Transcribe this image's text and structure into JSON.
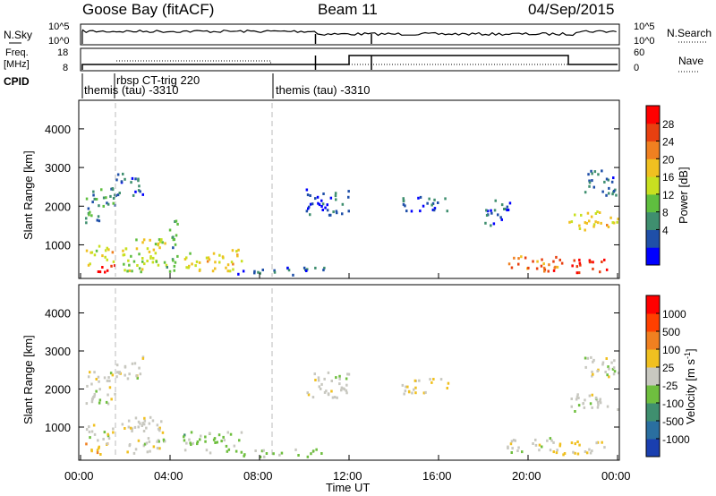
{
  "header": {
    "station": "Goose Bay (fitACF)",
    "beam": "Beam 11",
    "date": "04/Sep/2015"
  },
  "nsky_panel": {
    "left_label": "N.Sky",
    "left_ticks": [
      "10^5",
      "10^0"
    ],
    "right_ticks": [
      "10^5",
      "10^0"
    ],
    "right_label": "N.Search"
  },
  "freq_panel": {
    "left_label_1": "Freq.",
    "left_label_2": "[MHz]",
    "left_ticks": [
      "18",
      "8"
    ],
    "right_ticks": [
      "60",
      "0"
    ],
    "right_label": "Nave"
  },
  "cpid_panel": {
    "label": "CPID",
    "segments": [
      {
        "text": "themis (tau) -3310",
        "start_hour": 0.0
      },
      {
        "text": "rbsp CT-trig 220",
        "start_hour": 1.5
      },
      {
        "text": "themis (tau) -3310",
        "start_hour": 8.5
      }
    ]
  },
  "time_axis": {
    "ticks": [
      "00:00",
      "04:00",
      "08:00",
      "12:00",
      "16:00",
      "20:00",
      "00:00"
    ],
    "label": "Time UT"
  },
  "power_panel": {
    "ylabel": "Slant Range [km]",
    "yticks": [
      "1000",
      "2000",
      "3000",
      "4000"
    ],
    "colorbar_label": "Power [dB]",
    "colorbar_ticks": [
      "28",
      "24",
      "20",
      "16",
      "12",
      "8",
      "4"
    ],
    "colors": [
      "#0000ff",
      "#1f4fa8",
      "#3f8f6f",
      "#5fbf3f",
      "#c8e020",
      "#f0c020",
      "#f08020",
      "#e84010",
      "#ff0000"
    ]
  },
  "velocity_panel": {
    "ylabel": "Slant Range [km]",
    "yticks": [
      "1000",
      "2000",
      "3000",
      "4000"
    ],
    "colorbar_label": "Velocity [m s",
    "colorbar_label_sup": "-1",
    "colorbar_label_end": "]",
    "colorbar_ticks": [
      "1000",
      "500",
      "100",
      "25",
      "-25",
      "-100",
      "-500",
      "-1000"
    ],
    "colors": [
      "#1a3fb0",
      "#2a6fa0",
      "#3f8f6f",
      "#6fbf3f",
      "#c8c8c0",
      "#f0c020",
      "#f08020",
      "#ff4000",
      "#ff0000"
    ]
  },
  "chart_data": [
    {
      "type": "heatmap",
      "title": "Power",
      "xlabel": "Time UT",
      "ylabel": "Slant Range [km]",
      "xlim": [
        0,
        24
      ],
      "ylim": [
        200,
        4600
      ],
      "value_unit": "dB",
      "vlim": [
        0,
        32
      ],
      "clusters": [
        {
          "t0": 0.2,
          "t1": 1.5,
          "r0": 300,
          "r1": 500,
          "v": 30
        },
        {
          "t0": 0.2,
          "t1": 1.5,
          "r0": 500,
          "r1": 1000,
          "v": 18
        },
        {
          "t0": 0.2,
          "t1": 1.6,
          "r0": 1600,
          "r1": 2500,
          "v": 8
        },
        {
          "t0": 1.5,
          "t1": 2.8,
          "r0": 2300,
          "r1": 2900,
          "v": 5
        },
        {
          "t0": 1.8,
          "t1": 3.8,
          "r0": 300,
          "r1": 1300,
          "v": 16
        },
        {
          "t0": 3.8,
          "t1": 4.3,
          "r0": 300,
          "r1": 1800,
          "v": 10
        },
        {
          "t0": 4.5,
          "t1": 7.2,
          "r0": 350,
          "r1": 900,
          "v": 18
        },
        {
          "t0": 7.0,
          "t1": 11.0,
          "r0": 250,
          "r1": 450,
          "v": 6
        },
        {
          "t0": 10.0,
          "t1": 12.0,
          "r0": 1800,
          "r1": 2500,
          "v": 5
        },
        {
          "t0": 14.3,
          "t1": 16.5,
          "r0": 1900,
          "r1": 2300,
          "v": 5
        },
        {
          "t0": 18.0,
          "t1": 19.2,
          "r0": 1500,
          "r1": 2200,
          "v": 5
        },
        {
          "t0": 19.0,
          "t1": 21.3,
          "r0": 350,
          "r1": 750,
          "v": 24
        },
        {
          "t0": 21.0,
          "t1": 23.5,
          "r0": 300,
          "r1": 650,
          "v": 28
        },
        {
          "t0": 21.8,
          "t1": 24.0,
          "r0": 1400,
          "r1": 1900,
          "v": 18
        },
        {
          "t0": 22.5,
          "t1": 24.0,
          "r0": 2300,
          "r1": 3000,
          "v": 6
        }
      ]
    },
    {
      "type": "heatmap",
      "title": "Velocity",
      "xlabel": "Time UT",
      "ylabel": "Slant Range [km]",
      "xlim": [
        0,
        24
      ],
      "ylim": [
        200,
        4600
      ],
      "value_unit": "m s^-1",
      "vlim": [
        -1000,
        1000
      ],
      "clusters": [
        {
          "t0": 0.2,
          "t1": 1.5,
          "r0": 300,
          "r1": 600,
          "v": 300
        },
        {
          "t0": 0.2,
          "t1": 1.5,
          "r0": 600,
          "r1": 1100,
          "v": 0
        },
        {
          "t0": 0.2,
          "t1": 1.6,
          "r0": 1600,
          "r1": 2500,
          "v": 0
        },
        {
          "t0": 1.5,
          "t1": 2.8,
          "r0": 2300,
          "r1": 2900,
          "v": 0
        },
        {
          "t0": 1.8,
          "t1": 3.8,
          "r0": 300,
          "r1": 1300,
          "v": 0
        },
        {
          "t0": 4.5,
          "t1": 7.2,
          "r0": 350,
          "r1": 900,
          "v": -200
        },
        {
          "t0": 7.0,
          "t1": 11.0,
          "r0": 250,
          "r1": 450,
          "v": -150
        },
        {
          "t0": 10.0,
          "t1": 12.0,
          "r0": 1800,
          "r1": 2500,
          "v": 0
        },
        {
          "t0": 14.3,
          "t1": 16.5,
          "r0": 1900,
          "r1": 2300,
          "v": 80
        },
        {
          "t0": 19.0,
          "t1": 21.3,
          "r0": 350,
          "r1": 750,
          "v": 0
        },
        {
          "t0": 21.0,
          "t1": 23.5,
          "r0": 300,
          "r1": 650,
          "v": 150
        },
        {
          "t0": 21.8,
          "t1": 24.0,
          "r0": 1400,
          "r1": 1900,
          "v": 0
        },
        {
          "t0": 22.5,
          "t1": 24.0,
          "r0": 2300,
          "r1": 3000,
          "v": 0
        }
      ]
    }
  ]
}
